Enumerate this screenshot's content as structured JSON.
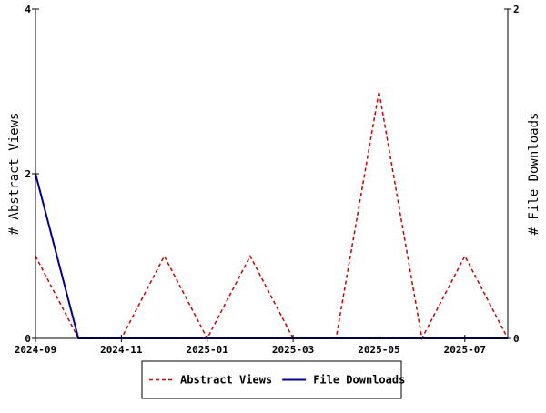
{
  "chart_data": {
    "type": "line",
    "x_type": "month",
    "x": [
      "2024-09",
      "2024-10",
      "2024-11",
      "2024-12",
      "2025-01",
      "2025-02",
      "2025-03",
      "2025-04",
      "2025-05",
      "2025-06",
      "2025-07",
      "2025-08"
    ],
    "x_tick_labels": [
      "2024-09",
      "2024-11",
      "2025-01",
      "2025-03",
      "2025-05",
      "2025-07"
    ],
    "series": [
      {
        "name": "Abstract Views",
        "axis": "left",
        "color": "#cc0000",
        "style": "dashed",
        "values": [
          1,
          0,
          0,
          1,
          0,
          1,
          0,
          0,
          3,
          0,
          1,
          0
        ]
      },
      {
        "name": "File Downloads",
        "axis": "right",
        "color": "#000099",
        "style": "solid",
        "values": [
          1,
          0,
          0,
          0,
          0,
          0,
          0,
          0,
          0,
          0,
          0,
          0
        ]
      }
    ],
    "ylabel": "# Abstract Views",
    "y2label": "# File Downloads",
    "ylim": [
      0,
      4
    ],
    "y_ticks": [
      0,
      2,
      4
    ],
    "y2lim": [
      0,
      2
    ],
    "y2_ticks": [
      0,
      2
    ],
    "grid": false,
    "legend_position": "bottom"
  }
}
